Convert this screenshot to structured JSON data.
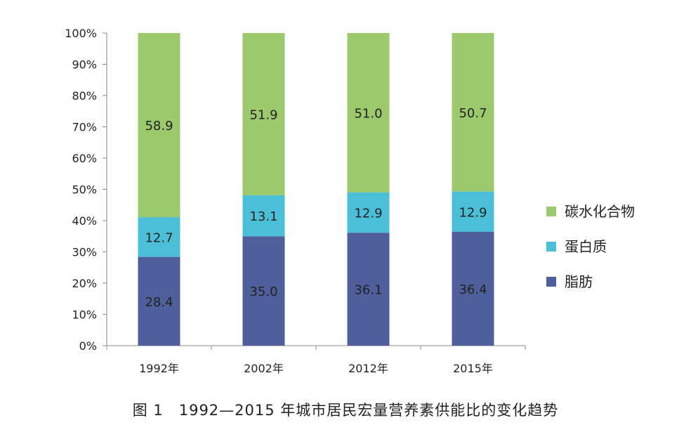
{
  "chart_data": {
    "type": "bar",
    "stacked": true,
    "categories": [
      "1992年",
      "2002年",
      "2012年",
      "2015年"
    ],
    "series": [
      {
        "name": "脂肪",
        "values": [
          28.4,
          35.0,
          36.1,
          36.4
        ],
        "labels": [
          "28.4",
          "35.0",
          "36.1",
          "36.4"
        ],
        "color": "#4e5f9b"
      },
      {
        "name": "蛋白质",
        "values": [
          12.7,
          13.1,
          12.9,
          12.9
        ],
        "labels": [
          "12.7",
          "13.1",
          "12.9",
          "12.9"
        ],
        "color": "#4bbfd8"
      },
      {
        "name": "碳水化合物",
        "values": [
          58.9,
          51.9,
          51.0,
          50.7
        ],
        "labels": [
          "58.9",
          "51.9",
          "51.0",
          "50.7"
        ],
        "color": "#9bc96b"
      }
    ],
    "y_ticks": [
      "0%",
      "10%",
      "20%",
      "30%",
      "40%",
      "50%",
      "60%",
      "70%",
      "80%",
      "90%",
      "100%"
    ],
    "ylim": [
      0,
      100
    ],
    "legend_position": "right",
    "legend_order": [
      "碳水化合物",
      "蛋白质",
      "脂肪"
    ],
    "grid": false
  },
  "caption": "图 1　1992—2015 年城市居民宏量营养素供能比的变化趋势"
}
